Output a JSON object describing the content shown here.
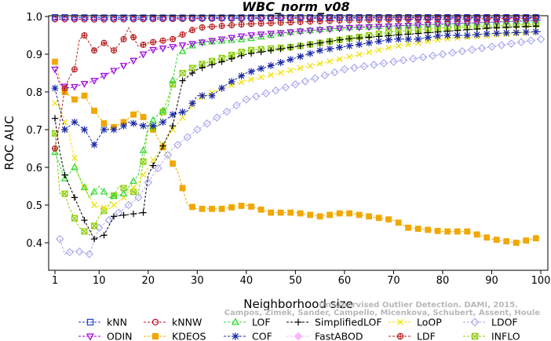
{
  "chart_data": {
    "type": "line",
    "title": "WBC_norm_v08",
    "xlabel": "Neighborhood size",
    "ylabel": "ROC AUC",
    "xlim": [
      1,
      100
    ],
    "ylim": [
      0.365,
      1.0
    ],
    "xticks": [
      1,
      10,
      20,
      30,
      40,
      50,
      60,
      70,
      80,
      90,
      100
    ],
    "yticks": [
      0.4,
      0.5,
      0.6,
      0.7,
      0.8,
      0.9,
      1.0
    ],
    "grid": false,
    "legend_position": "bottom",
    "watermark": [
      "Campos, Zimek, Sander, Campello, Micenkova, Schubert, Assent, Houle",
      "Unsupervised Outlier Detection. DAMI, 2015."
    ],
    "series": [
      {
        "name": "kNN",
        "color": "#1f3fd0",
        "marker": "square",
        "keys": [
          [
            1,
            0.998
          ],
          [
            10,
            0.997
          ],
          [
            30,
            0.997
          ],
          [
            60,
            0.998
          ],
          [
            100,
            0.998
          ]
        ]
      },
      {
        "name": "kNNW",
        "color": "#c8102e",
        "marker": "circle",
        "keys": [
          [
            1,
            0.993
          ],
          [
            10,
            0.992
          ],
          [
            30,
            0.994
          ],
          [
            60,
            0.996
          ],
          [
            100,
            0.997
          ]
        ]
      },
      {
        "name": "LOF",
        "color": "#2bd82b",
        "marker": "triangle-up",
        "keys": [
          [
            1,
            0.64
          ],
          [
            3,
            0.57
          ],
          [
            5,
            0.6
          ],
          [
            8,
            0.52
          ],
          [
            10,
            0.55
          ],
          [
            12,
            0.52
          ],
          [
            15,
            0.53
          ],
          [
            18,
            0.58
          ],
          [
            20,
            0.71
          ],
          [
            22,
            0.74
          ],
          [
            24,
            0.76
          ],
          [
            26,
            0.9
          ],
          [
            30,
            0.93
          ],
          [
            40,
            0.94
          ],
          [
            50,
            0.96
          ],
          [
            60,
            0.97
          ],
          [
            70,
            0.975
          ],
          [
            80,
            0.98
          ],
          [
            90,
            0.985
          ],
          [
            100,
            0.99
          ]
        ]
      },
      {
        "name": "SimplifiedLOF",
        "color": "#000000",
        "marker": "plus",
        "keys": [
          [
            1,
            0.73
          ],
          [
            2,
            0.64
          ],
          [
            3,
            0.58
          ],
          [
            5,
            0.52
          ],
          [
            7,
            0.46
          ],
          [
            9,
            0.41
          ],
          [
            11,
            0.42
          ],
          [
            13,
            0.47
          ],
          [
            19,
            0.48
          ],
          [
            20,
            0.58
          ],
          [
            22,
            0.63
          ],
          [
            25,
            0.71
          ],
          [
            27,
            0.83
          ],
          [
            30,
            0.86
          ],
          [
            35,
            0.88
          ],
          [
            40,
            0.9
          ],
          [
            50,
            0.92
          ],
          [
            60,
            0.94
          ],
          [
            70,
            0.95
          ],
          [
            80,
            0.96
          ],
          [
            90,
            0.97
          ],
          [
            100,
            0.975
          ]
        ]
      },
      {
        "name": "LoOP",
        "color": "#f0e000",
        "marker": "x",
        "keys": [
          [
            1,
            0.77
          ],
          [
            2,
            0.76
          ],
          [
            4,
            0.68
          ],
          [
            6,
            0.57
          ],
          [
            9,
            0.5
          ],
          [
            12,
            0.49
          ],
          [
            15,
            0.52
          ],
          [
            18,
            0.56
          ],
          [
            20,
            0.6
          ],
          [
            22,
            0.64
          ],
          [
            25,
            0.7
          ],
          [
            30,
            0.78
          ],
          [
            35,
            0.81
          ],
          [
            40,
            0.83
          ],
          [
            50,
            0.86
          ],
          [
            60,
            0.89
          ],
          [
            70,
            0.92
          ],
          [
            80,
            0.94
          ],
          [
            90,
            0.95
          ],
          [
            100,
            0.96
          ]
        ]
      },
      {
        "name": "LDOF",
        "color": "#aaaaee",
        "marker": "diamond",
        "keys": [
          [
            2,
            0.41
          ],
          [
            3,
            0.37
          ],
          [
            5,
            0.38
          ],
          [
            8,
            0.37
          ],
          [
            10,
            0.44
          ],
          [
            14,
            0.48
          ],
          [
            18,
            0.52
          ],
          [
            21,
            0.58
          ],
          [
            25,
            0.65
          ],
          [
            30,
            0.7
          ],
          [
            35,
            0.74
          ],
          [
            40,
            0.78
          ],
          [
            50,
            0.82
          ],
          [
            60,
            0.86
          ],
          [
            70,
            0.88
          ],
          [
            80,
            0.9
          ],
          [
            90,
            0.92
          ],
          [
            100,
            0.94
          ]
        ]
      },
      {
        "name": "ODIN",
        "color": "#9b00e0",
        "marker": "triangle-down",
        "keys": [
          [
            1,
            0.86
          ],
          [
            2,
            0.82
          ],
          [
            4,
            0.81
          ],
          [
            9,
            0.83
          ],
          [
            12,
            0.85
          ],
          [
            15,
            0.87
          ],
          [
            18,
            0.89
          ],
          [
            20,
            0.91
          ],
          [
            25,
            0.92
          ],
          [
            30,
            0.93
          ],
          [
            40,
            0.95
          ],
          [
            50,
            0.96
          ],
          [
            60,
            0.97
          ],
          [
            70,
            0.975
          ],
          [
            80,
            0.98
          ],
          [
            90,
            0.985
          ],
          [
            100,
            0.99
          ]
        ]
      },
      {
        "name": "KDEOS",
        "color": "#f0a800",
        "marker": "square-filled",
        "keys": [
          [
            1,
            0.88
          ],
          [
            2,
            0.83
          ],
          [
            3,
            0.8
          ],
          [
            5,
            0.78
          ],
          [
            7,
            0.79
          ],
          [
            9,
            0.75
          ],
          [
            12,
            0.7
          ],
          [
            15,
            0.72
          ],
          [
            18,
            0.75
          ],
          [
            21,
            0.7
          ],
          [
            24,
            0.63
          ],
          [
            26,
            0.59
          ],
          [
            28,
            0.5
          ],
          [
            30,
            0.49
          ],
          [
            35,
            0.49
          ],
          [
            40,
            0.5
          ],
          [
            45,
            0.48
          ],
          [
            50,
            0.48
          ],
          [
            55,
            0.47
          ],
          [
            60,
            0.48
          ],
          [
            65,
            0.47
          ],
          [
            70,
            0.46
          ],
          [
            73,
            0.44
          ],
          [
            80,
            0.43
          ],
          [
            85,
            0.43
          ],
          [
            90,
            0.41
          ],
          [
            95,
            0.4
          ],
          [
            100,
            0.415
          ]
        ]
      },
      {
        "name": "COF",
        "color": "#1a2aa8",
        "marker": "asterisk",
        "keys": [
          [
            1,
            0.81
          ],
          [
            3,
            0.7
          ],
          [
            5,
            0.72
          ],
          [
            7,
            0.7
          ],
          [
            9,
            0.66
          ],
          [
            11,
            0.7
          ],
          [
            14,
            0.7
          ],
          [
            16,
            0.72
          ],
          [
            19,
            0.71
          ],
          [
            22,
            0.71
          ],
          [
            25,
            0.74
          ],
          [
            28,
            0.75
          ],
          [
            30,
            0.79
          ],
          [
            33,
            0.79
          ],
          [
            36,
            0.82
          ],
          [
            40,
            0.85
          ],
          [
            45,
            0.87
          ],
          [
            50,
            0.89
          ],
          [
            55,
            0.91
          ],
          [
            60,
            0.92
          ],
          [
            65,
            0.93
          ],
          [
            70,
            0.94
          ],
          [
            75,
            0.94
          ],
          [
            80,
            0.95
          ],
          [
            85,
            0.95
          ],
          [
            90,
            0.955
          ],
          [
            100,
            0.96
          ]
        ]
      },
      {
        "name": "FastABOD",
        "color": "#f7b6f7",
        "marker": "diamond-filled",
        "keys": [
          [
            1,
            0.993
          ],
          [
            10,
            0.994
          ],
          [
            30,
            0.995
          ],
          [
            60,
            0.996
          ],
          [
            100,
            0.997
          ]
        ]
      },
      {
        "name": "LDF",
        "color": "#b82020",
        "marker": "circle-plus",
        "keys": [
          [
            1,
            0.65
          ],
          [
            2,
            0.72
          ],
          [
            3,
            0.81
          ],
          [
            4,
            0.84
          ],
          [
            5,
            0.86
          ],
          [
            6,
            0.94
          ],
          [
            7,
            0.95
          ],
          [
            9,
            0.91
          ],
          [
            11,
            0.93
          ],
          [
            13,
            0.91
          ],
          [
            15,
            0.94
          ],
          [
            16,
            0.97
          ],
          [
            18,
            0.92
          ],
          [
            20,
            0.93
          ],
          [
            25,
            0.94
          ],
          [
            30,
            0.97
          ],
          [
            40,
            0.98
          ],
          [
            50,
            0.985
          ],
          [
            60,
            0.99
          ],
          [
            70,
            0.992
          ],
          [
            80,
            0.993
          ],
          [
            90,
            0.994
          ],
          [
            100,
            0.995
          ]
        ]
      },
      {
        "name": "INFLO",
        "color": "#88cc00",
        "marker": "square-x",
        "keys": [
          [
            1,
            0.69
          ],
          [
            2,
            0.53
          ],
          [
            3,
            0.53
          ],
          [
            4,
            0.49
          ],
          [
            6,
            0.44
          ],
          [
            8,
            0.42
          ],
          [
            10,
            0.47
          ],
          [
            12,
            0.5
          ],
          [
            14,
            0.55
          ],
          [
            16,
            0.54
          ],
          [
            18,
            0.53
          ],
          [
            20,
            0.7
          ],
          [
            22,
            0.71
          ],
          [
            25,
            0.82
          ],
          [
            27,
            0.85
          ],
          [
            30,
            0.87
          ],
          [
            35,
            0.89
          ],
          [
            40,
            0.91
          ],
          [
            50,
            0.92
          ],
          [
            60,
            0.94
          ],
          [
            70,
            0.96
          ],
          [
            80,
            0.97
          ],
          [
            90,
            0.975
          ],
          [
            100,
            0.98
          ]
        ]
      }
    ]
  }
}
